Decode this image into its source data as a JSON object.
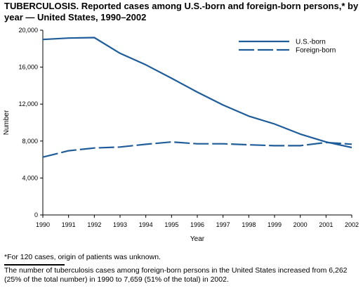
{
  "title": {
    "lead": "TUBERCULOSIS.",
    "text": " Reported cases among U.S.-born and foreign-born persons,* by year — United States, 1990–2002"
  },
  "footnote": "*For 120 cases, origin of patients was unknown.",
  "caption": "The number of tuberculosis cases among foreign-born persons in the United States increased from 6,262 (25% of the total number) in 1990 to 7,659 (51% of the total) in 2002.",
  "colors": {
    "line": "#1f5d9a",
    "axis": "#000000"
  },
  "chart_data": {
    "type": "line",
    "xlabel": "Year",
    "ylabel": "Number",
    "x": [
      1990,
      1991,
      1992,
      1993,
      1994,
      1995,
      1996,
      1997,
      1998,
      1999,
      2000,
      2001,
      2002
    ],
    "xlim": [
      1990,
      2002
    ],
    "ylim": [
      0,
      20000
    ],
    "yticks": [
      0,
      4000,
      8000,
      12000,
      16000,
      20000
    ],
    "ytick_labels": [
      "0",
      "4,000",
      "8,000",
      "12,000",
      "16,000",
      "20,000"
    ],
    "xtick_labels": [
      "1990",
      "1991",
      "1992",
      "1993",
      "1994",
      "1995",
      "1996",
      "1997",
      "1998",
      "1999",
      "2000",
      "2001",
      "2002"
    ],
    "legend_position": "top-right",
    "grid": false,
    "series": [
      {
        "name": "U.S.-born",
        "style": "solid",
        "values": [
          19000,
          19150,
          19200,
          17500,
          16250,
          14800,
          13300,
          11900,
          10700,
          9850,
          8750,
          7900,
          7300
        ]
      },
      {
        "name": "Foreign-born",
        "style": "dashed",
        "values": [
          6262,
          6950,
          7250,
          7350,
          7650,
          7900,
          7700,
          7700,
          7600,
          7500,
          7500,
          7850,
          7659
        ]
      }
    ]
  }
}
